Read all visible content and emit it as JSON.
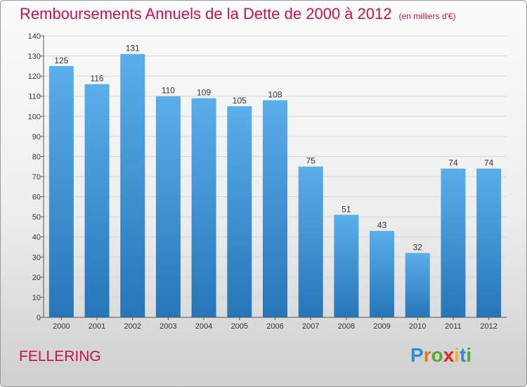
{
  "header": {
    "title": "Remboursements Annuels de la Dette de 2000 à 2012",
    "unit": "(en milliers d'€)"
  },
  "footer": {
    "commune": "FELLERING",
    "logo_letters": [
      {
        "ch": "P",
        "color": "#2a8fd6"
      },
      {
        "ch": "r",
        "color": "#e8731a"
      },
      {
        "ch": "o",
        "color": "#56a82e"
      },
      {
        "ch": "x",
        "color": "#e2261c"
      },
      {
        "ch": "i",
        "color": "#f1b41c"
      },
      {
        "ch": "t",
        "color": "#2a8fd6"
      },
      {
        "ch": "i",
        "color": "#56a82e"
      }
    ]
  },
  "chart_data": {
    "type": "bar",
    "categories": [
      "2000",
      "2001",
      "2002",
      "2003",
      "2004",
      "2005",
      "2006",
      "2007",
      "2008",
      "2009",
      "2010",
      "2011",
      "2012"
    ],
    "values": [
      125,
      116,
      131,
      110,
      109,
      105,
      108,
      75,
      51,
      43,
      32,
      74,
      74
    ],
    "ylim": [
      0,
      140
    ],
    "yticks": [
      0,
      10,
      20,
      30,
      40,
      50,
      60,
      70,
      80,
      90,
      100,
      110,
      120,
      130,
      140
    ],
    "grid": true,
    "bar_color_top": "#5aaeea",
    "bar_color_bottom": "#2676b8",
    "title_color": "#c8104a"
  }
}
